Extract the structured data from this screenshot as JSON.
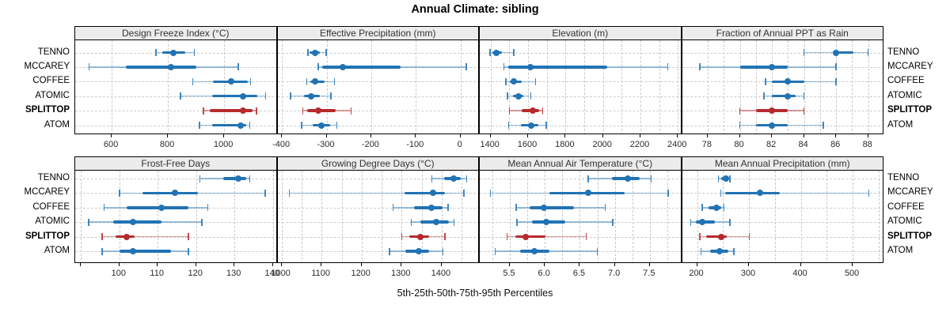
{
  "title": "Annual Climate: sibling",
  "caption": "5th-25th-50th-75th-95th Percentiles",
  "sites": [
    "TENNO",
    "MCCAREY",
    "COFFEE",
    "ATOMIC",
    "SPLITTOP",
    "ATOM"
  ],
  "highlight_site": "SPLITTOP",
  "percentile_labels": [
    "5th",
    "25th",
    "50th",
    "75th",
    "95th"
  ],
  "colors": {
    "series": "#2173b4",
    "highlight": "#b62a2e",
    "grid": "#c9c9c9",
    "header_bg": "#ececec",
    "border": "#000000"
  },
  "chart_data": [
    {
      "type": "dot-interval",
      "id": "design-freeze-index",
      "row": 0,
      "col": 0,
      "title": "Design Freeze Index (°C)",
      "xlim": [
        470,
        1190
      ],
      "ticks": [
        {
          "v": 600,
          "label": "600"
        },
        {
          "v": 800,
          "label": "800"
        },
        {
          "v": 1000,
          "label": "1000"
        }
      ],
      "gridlines": [
        600,
        800,
        1000
      ],
      "percentiles": {
        "TENNO": [
          758,
          780,
          820,
          862,
          894
        ],
        "MCCAREY": [
          519,
          650,
          810,
          900,
          1051
        ],
        "COFFEE": [
          889,
          960,
          1026,
          1085,
          1094
        ],
        "ATOMIC": [
          845,
          958,
          1068,
          1118,
          1148
        ],
        "SPLITTOP": [
          926,
          950,
          1068,
          1100,
          1116
        ],
        "ATOM": [
          912,
          958,
          1058,
          1080,
          1092
        ]
      }
    },
    {
      "type": "dot-interval",
      "id": "effective-precipitation",
      "row": 0,
      "col": 1,
      "title": "Effective Precipitation (mm)",
      "xlim": [
        -410,
        43
      ],
      "ticks": [
        {
          "v": -400,
          "label": "-400"
        },
        {
          "v": -300,
          "label": "-300"
        },
        {
          "v": -200,
          "label": "-200"
        },
        {
          "v": -100,
          "label": "-100"
        },
        {
          "v": 0,
          "label": "0"
        }
      ],
      "gridlines": [
        -400,
        -300,
        -200,
        -100,
        0
      ],
      "percentiles": {
        "TENNO": [
          -342,
          -338,
          -326,
          -316,
          -301
        ],
        "MCCAREY": [
          -319,
          -310,
          -264,
          -135,
          13
        ],
        "COFFEE": [
          -344,
          -337,
          -325,
          -304,
          -282
        ],
        "ATOMIC": [
          -381,
          -351,
          -334,
          -316,
          -290
        ],
        "SPLITTOP": [
          -353,
          -344,
          -319,
          -280,
          -245
        ],
        "ATOM": [
          -356,
          -331,
          -312,
          -292,
          -277
        ]
      }
    },
    {
      "type": "dot-interval",
      "id": "elevation",
      "row": 0,
      "col": 2,
      "title": "Elevation (m)",
      "xlim": [
        1342,
        2422
      ],
      "ticks": [
        {
          "v": 1400,
          "label": "1400"
        },
        {
          "v": 1600,
          "label": "1600"
        },
        {
          "v": 1800,
          "label": "1800"
        },
        {
          "v": 2000,
          "label": "2000"
        },
        {
          "v": 2200,
          "label": "2200"
        },
        {
          "v": 2400,
          "label": "2400"
        }
      ],
      "gridlines": [
        1400,
        1500,
        1600,
        1700,
        1800,
        1900,
        2000,
        2100,
        2200,
        2300,
        2400
      ],
      "percentiles": {
        "TENNO": [
          1397,
          1411,
          1432,
          1460,
          1524
        ],
        "MCCAREY": [
          1470,
          1496,
          1611,
          2024,
          2345
        ],
        "COFFEE": [
          1482,
          1503,
          1524,
          1566,
          1641
        ],
        "ATOMIC": [
          1489,
          1521,
          1548,
          1576,
          1615
        ],
        "SPLITTOP": [
          1500,
          1566,
          1627,
          1660,
          1679
        ],
        "ATOM": [
          1496,
          1562,
          1615,
          1653,
          1697
        ]
      }
    },
    {
      "type": "dot-interval",
      "id": "fraction-annual-ppt-as-rain",
      "row": 0,
      "col": 3,
      "title": "Fraction of Annual PPT as Rain",
      "xlim": [
        76.4,
        89.0
      ],
      "ticks": [
        {
          "v": 78,
          "label": "78"
        },
        {
          "v": 80,
          "label": "80"
        },
        {
          "v": 82,
          "label": "82"
        },
        {
          "v": 84,
          "label": "84"
        },
        {
          "v": 86,
          "label": "86"
        },
        {
          "v": 88,
          "label": "88"
        }
      ],
      "gridlines": [
        78,
        79,
        80,
        81,
        82,
        83,
        84,
        85,
        86,
        87,
        88
      ],
      "percentiles": {
        "TENNO": [
          84,
          85.8,
          86,
          87.1,
          88
        ],
        "MCCAREY": [
          77.5,
          80,
          82,
          83,
          86
        ],
        "COFFEE": [
          81.6,
          82,
          83,
          84,
          86
        ],
        "ATOMIC": [
          81.5,
          82,
          83,
          83.5,
          84
        ],
        "SPLITTOP": [
          80,
          81,
          82,
          83,
          84
        ],
        "ATOM": [
          80,
          81,
          82,
          83,
          85.2
        ]
      }
    },
    {
      "type": "dot-interval",
      "id": "frost-free-days",
      "row": 1,
      "col": 0,
      "title": "Frost-Free Days",
      "xlim": [
        88.5,
        141.2
      ],
      "ticks": [
        {
          "v": 90,
          "label": ""
        },
        {
          "v": 100,
          "label": "100"
        },
        {
          "v": 110,
          "label": "110"
        },
        {
          "v": 120,
          "label": "120"
        },
        {
          "v": 130,
          "label": "130"
        },
        {
          "v": 140,
          "label": "140"
        }
      ],
      "gridlines": [
        90,
        100,
        110,
        120,
        130,
        140
      ],
      "percentiles": {
        "TENNO": [
          121,
          127,
          131,
          133,
          134
        ],
        "MCCAREY": [
          100,
          106,
          114.5,
          120.5,
          138
        ],
        "COFFEE": [
          96,
          102,
          111,
          118,
          123
        ],
        "ATOMIC": [
          92,
          98.5,
          103.5,
          111,
          121.5
        ],
        "SPLITTOP": [
          95.5,
          99,
          102,
          104,
          118
        ],
        "ATOM": [
          95.5,
          100,
          103.5,
          113.5,
          118
        ]
      }
    },
    {
      "type": "dot-interval",
      "id": "growing-degree-days",
      "row": 1,
      "col": 1,
      "title": "Growing Degree Days (°C)",
      "xlim": [
        990,
        1495
      ],
      "ticks": [
        {
          "v": 1000,
          "label": "1000"
        },
        {
          "v": 1100,
          "label": "1100"
        },
        {
          "v": 1200,
          "label": "1200"
        },
        {
          "v": 1300,
          "label": "1300"
        },
        {
          "v": 1400,
          "label": "1400"
        }
      ],
      "gridlines": [
        1000,
        1050,
        1100,
        1150,
        1200,
        1250,
        1300,
        1350,
        1400,
        1450
      ],
      "percentiles": {
        "TENNO": [
          1375,
          1406,
          1430,
          1448,
          1462
        ],
        "MCCAREY": [
          1020,
          1308,
          1378,
          1408,
          1455
        ],
        "COFFEE": [
          1279,
          1330,
          1375,
          1402,
          1416
        ],
        "ATOMIC": [
          1324,
          1346,
          1386,
          1417,
          1431
        ],
        "SPLITTOP": [
          1300,
          1320,
          1346,
          1368,
          1408
        ],
        "ATOM": [
          1270,
          1310,
          1342,
          1369,
          1403
        ]
      }
    },
    {
      "type": "dot-interval",
      "id": "mean-annual-air-temperature",
      "row": 1,
      "col": 2,
      "title": "Mean Annual Air Temperature (°C)",
      "xlim": [
        5.07,
        7.96
      ],
      "ticks": [
        {
          "v": 5.5,
          "label": "5.5"
        },
        {
          "v": 6.0,
          "label": "6.0"
        },
        {
          "v": 6.5,
          "label": "6.5"
        },
        {
          "v": 7.0,
          "label": "7.0"
        },
        {
          "v": 7.5,
          "label": "7.5"
        }
      ],
      "gridlines": [
        5.25,
        5.5,
        5.75,
        6.0,
        6.25,
        6.5,
        6.75,
        7.0,
        7.25,
        7.5,
        7.75
      ],
      "percentiles": {
        "TENNO": [
          6.62,
          6.96,
          7.18,
          7.35,
          7.52
        ],
        "MCCAREY": [
          5.22,
          6.07,
          6.62,
          7.14,
          7.76
        ],
        "COFFEE": [
          5.59,
          5.78,
          5.99,
          6.42,
          6.86
        ],
        "ATOMIC": [
          5.6,
          5.82,
          6.02,
          6.29,
          6.97
        ],
        "SPLITTOP": [
          5.46,
          5.58,
          5.73,
          6.01,
          6.59
        ],
        "ATOM": [
          5.29,
          5.65,
          5.85,
          6.07,
          6.75
        ]
      }
    },
    {
      "type": "dot-interval",
      "id": "mean-annual-precipitation",
      "row": 1,
      "col": 3,
      "title": "Mean Annual Precipitation (mm)",
      "xlim": [
        171,
        561
      ],
      "ticks": [
        {
          "v": 200,
          "label": "200"
        },
        {
          "v": 300,
          "label": "300"
        },
        {
          "v": 400,
          "label": "400"
        },
        {
          "v": 500,
          "label": "500"
        }
      ],
      "gridlines": [
        200,
        250,
        300,
        350,
        400,
        450,
        500,
        550
      ],
      "percentiles": {
        "TENNO": [
          241,
          247,
          256,
          260,
          263
        ],
        "MCCAREY": [
          246,
          254,
          322,
          359,
          531
        ],
        "COFFEE": [
          210,
          222,
          237,
          247,
          252
        ],
        "ATOMIC": [
          188,
          198,
          210,
          235,
          263
        ],
        "SPLITTOP": [
          205,
          217,
          246,
          258,
          301
        ],
        "ATOM": [
          208,
          225,
          244,
          261,
          271
        ]
      }
    }
  ]
}
